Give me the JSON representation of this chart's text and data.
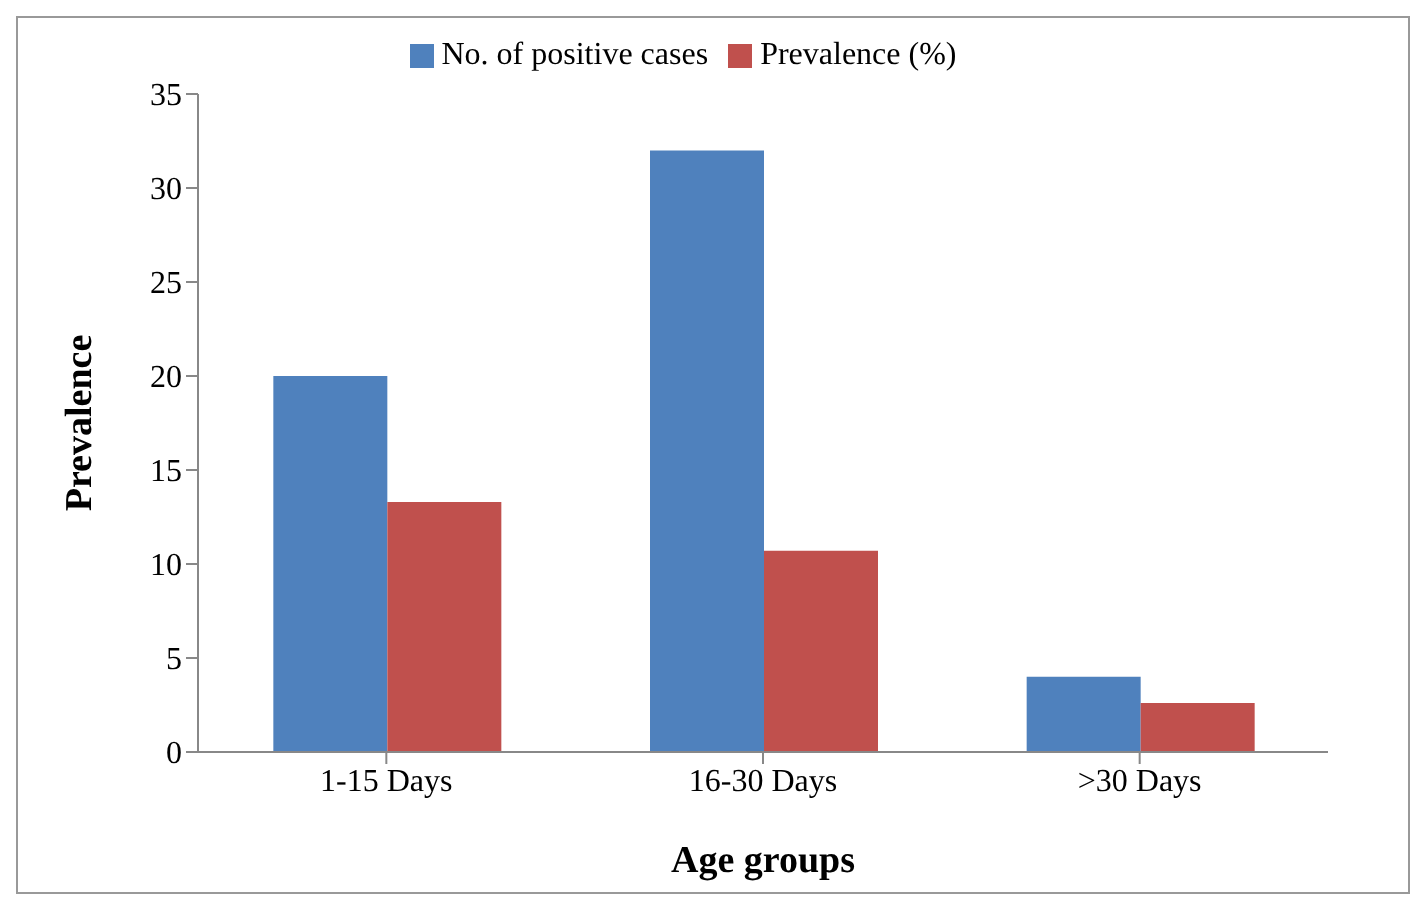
{
  "chart_data": {
    "type": "bar",
    "xlabel": "Age groups",
    "ylabel": "Prevalence",
    "categories": [
      "1-15 Days",
      "16-30 Days",
      ">30 Days"
    ],
    "series": [
      {
        "name": "No. of positive cases",
        "color": "#4f81bd",
        "values": [
          20,
          32,
          4
        ]
      },
      {
        "name": "Prevalence (%)",
        "color": "#c0504d",
        "values": [
          13.3,
          10.7,
          2.6
        ]
      }
    ],
    "ylim": [
      0,
      35
    ],
    "yticks": [
      0,
      5,
      10,
      15,
      20,
      25,
      30,
      35
    ],
    "grid": false,
    "legend": "top"
  }
}
